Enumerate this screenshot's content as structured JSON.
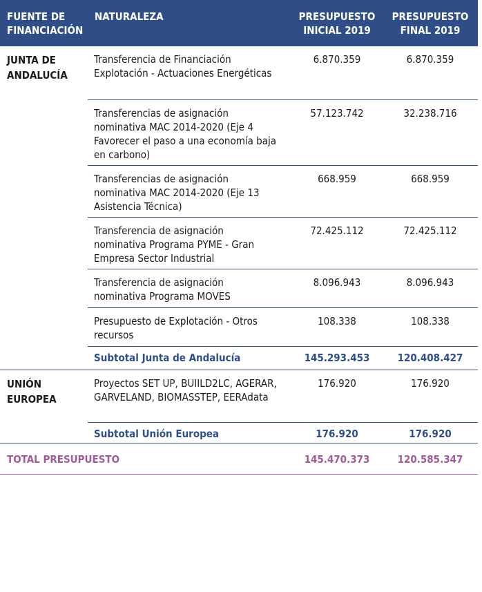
{
  "header": {
    "fuente": "FUENTE DE FINANCIACIÓN",
    "naturaleza": "NATURALEZA",
    "inicial": "PRESUPUESTO INICIAL 2019",
    "final": "PRESUPUESTO FINAL 2019"
  },
  "groups": [
    {
      "source": "JUNTA DE ANDALUCÍA",
      "rows": [
        {
          "naturaleza": "Transferencia de Financiación Explotación - Actuaciones Energéticas",
          "inicial": "6.870.359",
          "final": "6.870.359"
        },
        {
          "naturaleza": "Transferencias de asignación nominativa MAC 2014-2020 (Eje 4 Favorecer el paso a una economía baja en carbono)",
          "inicial": "57.123.742",
          "final": "32.238.716"
        },
        {
          "naturaleza": "Transferencias de asignación nominativa MAC 2014-2020 (Eje 13 Asistencia Técnica)",
          "inicial": "668.959",
          "final": "668.959"
        },
        {
          "naturaleza": "Transferencia de asignación nominativa Programa PYME - Gran Empresa Sector Industrial",
          "inicial": "72.425.112",
          "final": "72.425.112"
        },
        {
          "naturaleza": "Transferencia de asignación nominativa Programa MOVES",
          "inicial": "8.096.943",
          "final": "8.096.943"
        },
        {
          "naturaleza": "Presupuesto de Explotación - Otros recursos",
          "inicial": "108.338",
          "final": "108.338"
        }
      ],
      "subtotal": {
        "label": "Subtotal Junta de Andalucía",
        "inicial": "145.293.453",
        "final": "120.408.427"
      }
    },
    {
      "source": "UNIÓN EUROPEA",
      "rows": [
        {
          "naturaleza": "Proyectos SET UP, BUIILD2LC, AGERAR, GARVELAND, BIOMASSTEP, EERAdata",
          "inicial": "176.920",
          "final": "176.920"
        }
      ],
      "subtotal": {
        "label": "Subtotal Unión Europea",
        "inicial": "176.920",
        "final": "176.920"
      }
    }
  ],
  "total": {
    "label": "TOTAL PRESUPUESTO",
    "inicial": "145.470.373",
    "final": "120.585.347"
  },
  "colors": {
    "header_bg": "#2f4e87",
    "subtotal_text": "#2f4e87",
    "total_text": "#a05b98"
  }
}
